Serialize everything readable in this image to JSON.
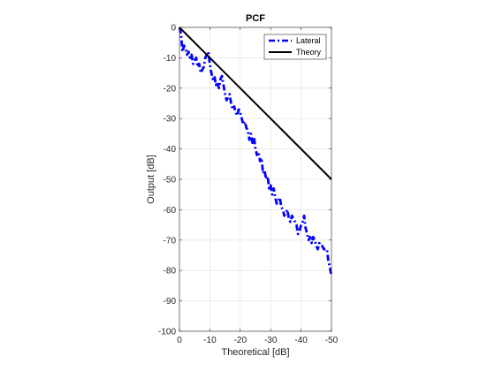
{
  "chart_data": {
    "type": "line",
    "title": "PCF",
    "xlabel": "Theoretical [dB]",
    "ylabel": "Output [dB]",
    "xlim": [
      0,
      -50
    ],
    "ylim": [
      -100,
      0
    ],
    "x_reversed": true,
    "grid": true,
    "legend_position": "top-right",
    "xticks": [
      "0",
      "-10",
      "-20",
      "-30",
      "-40",
      "-50"
    ],
    "yticks": [
      "0",
      "-10",
      "-20",
      "-30",
      "-40",
      "-50",
      "-60",
      "-70",
      "-80",
      "-90",
      "-100"
    ],
    "xtick_values": [
      0,
      -10,
      -20,
      -30,
      -40,
      -50
    ],
    "ytick_values": [
      0,
      -10,
      -20,
      -30,
      -40,
      -50,
      -60,
      -70,
      -80,
      -90,
      -100
    ],
    "series": [
      {
        "name": "Lateral",
        "color": "#0000ff",
        "style": "dash-dot",
        "x": [
          0,
          -0.5,
          -1,
          -1.5,
          -2,
          -2.5,
          -3,
          -3.5,
          -4,
          -4.5,
          -5,
          -5.5,
          -6,
          -6.5,
          -7,
          -7.5,
          -8,
          -8.5,
          -9,
          -9.5,
          -10,
          -10.5,
          -11,
          -11.5,
          -12,
          -12.5,
          -13,
          -13.5,
          -14,
          -14.5,
          -15,
          -15.5,
          -16,
          -16.5,
          -17,
          -17.5,
          -18,
          -18.5,
          -19,
          -19.5,
          -20,
          -20.5,
          -21,
          -21.5,
          -22,
          -22.5,
          -23,
          -23.5,
          -24,
          -24.5,
          -25,
          -25.5,
          -26,
          -26.5,
          -27,
          -27.5,
          -28,
          -28.5,
          -29,
          -29.5,
          -30,
          -30.5,
          -31,
          -31.5,
          -32,
          -32.5,
          -33,
          -33.5,
          -34,
          -34.5,
          -35,
          -35.5,
          -36,
          -36.5,
          -37,
          -37.5,
          -38,
          -38.5,
          -39,
          -39.5,
          -40,
          -40.5,
          -41,
          -41.5,
          -42,
          -42.5,
          -43,
          -43.5,
          -44,
          -44.5,
          -45,
          -45.5,
          -46,
          -46.5,
          -47,
          -47.5,
          -48,
          -48.5,
          -49,
          -49.5,
          -50
        ],
        "y": [
          0,
          -2,
          -8,
          -6,
          -7,
          -9,
          -8,
          -10,
          -9,
          -12,
          -11,
          -10,
          -13,
          -12,
          -15,
          -14,
          -13,
          -10,
          -9,
          -8,
          -12,
          -15,
          -17,
          -16,
          -19,
          -18,
          -20,
          -17,
          -16,
          -19,
          -22,
          -24,
          -23,
          -22,
          -25,
          -27,
          -26,
          -28,
          -29,
          -27,
          -28,
          -30,
          -32,
          -31,
          -33,
          -34,
          -37,
          -35,
          -38,
          -36,
          -40,
          -42,
          -41,
          -44,
          -43,
          -48,
          -47,
          -50,
          -49,
          -53,
          -52,
          -55,
          -53,
          -56,
          -58,
          -57,
          -56,
          -59,
          -60,
          -62,
          -61,
          -60,
          -63,
          -64,
          -62,
          -63,
          -64,
          -65,
          -68,
          -67,
          -65,
          -64,
          -62,
          -66,
          -68,
          -70,
          -69,
          -71,
          -69,
          -70,
          -72,
          -73,
          -71,
          -72,
          -72,
          -73,
          -73,
          -73,
          -77,
          -79,
          -82
        ]
      },
      {
        "name": "Theory",
        "color": "#000000",
        "style": "solid",
        "x": [
          0,
          -50
        ],
        "y": [
          0,
          -50
        ]
      }
    ]
  }
}
